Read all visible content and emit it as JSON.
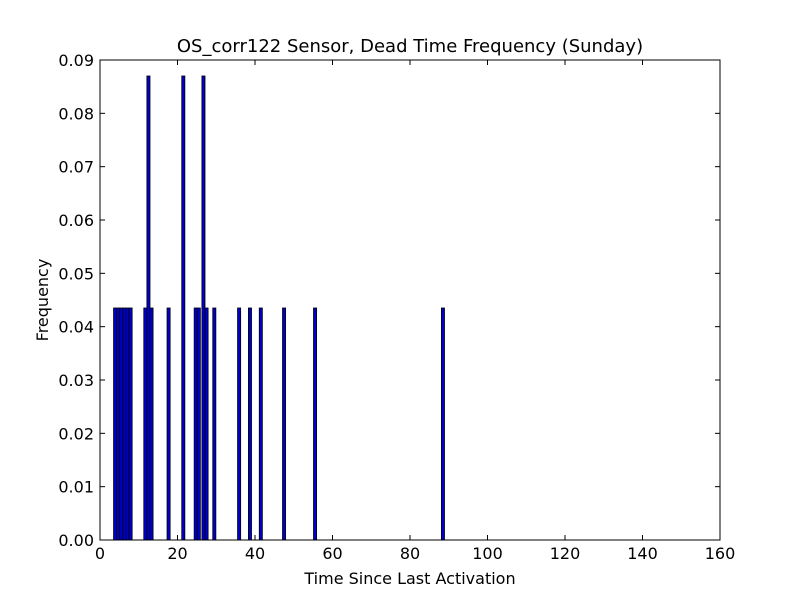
{
  "chart_data": {
    "type": "bar",
    "title": "OS_corr122 Sensor, Dead Time Frequency (Sunday)",
    "xlabel": "Time Since Last Activation",
    "ylabel": "Frequency",
    "xlim": [
      0,
      160
    ],
    "ylim": [
      0,
      0.09
    ],
    "xticks": [
      "0",
      "20",
      "40",
      "60",
      "80",
      "100",
      "120",
      "140",
      "160"
    ],
    "yticks": [
      "0.00",
      "0.01",
      "0.02",
      "0.03",
      "0.04",
      "0.05",
      "0.06",
      "0.07",
      "0.08",
      "0.09"
    ],
    "bin_width": 0.8,
    "bar_color": "#0000cc",
    "grid": false,
    "bars": [
      {
        "x": 3.5,
        "value": 0.0435
      },
      {
        "x": 4.3,
        "value": 0.0435
      },
      {
        "x": 5.1,
        "value": 0.0435
      },
      {
        "x": 5.9,
        "value": 0.0435
      },
      {
        "x": 6.7,
        "value": 0.0435
      },
      {
        "x": 7.5,
        "value": 0.0435
      },
      {
        "x": 11.3,
        "value": 0.0435
      },
      {
        "x": 12.1,
        "value": 0.087
      },
      {
        "x": 12.9,
        "value": 0.0435
      },
      {
        "x": 17.3,
        "value": 0.0435
      },
      {
        "x": 21.1,
        "value": 0.087
      },
      {
        "x": 24.3,
        "value": 0.0435
      },
      {
        "x": 25.1,
        "value": 0.0435
      },
      {
        "x": 26.3,
        "value": 0.087
      },
      {
        "x": 27.1,
        "value": 0.0435
      },
      {
        "x": 29.1,
        "value": 0.0435
      },
      {
        "x": 35.5,
        "value": 0.0435
      },
      {
        "x": 38.3,
        "value": 0.0435
      },
      {
        "x": 41.1,
        "value": 0.0435
      },
      {
        "x": 47.1,
        "value": 0.0435
      },
      {
        "x": 55.1,
        "value": 0.0435
      },
      {
        "x": 88.1,
        "value": 0.0435
      }
    ]
  }
}
